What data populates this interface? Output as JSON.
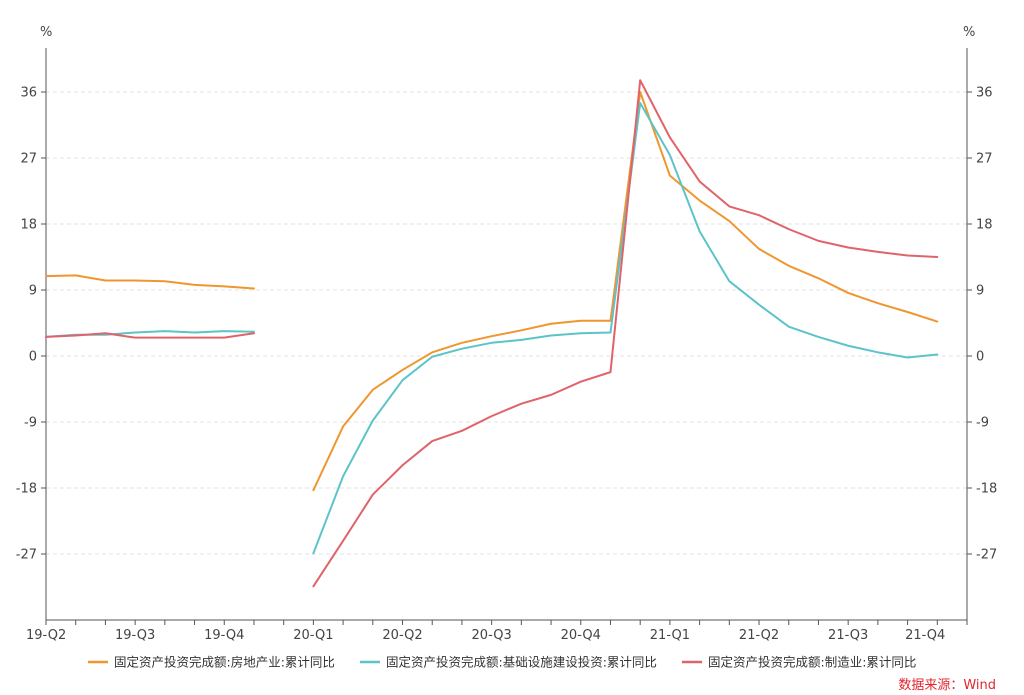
{
  "chart_data": {
    "type": "line",
    "title": "",
    "y_unit_left": "%",
    "y_unit_right": "%",
    "yticks": [
      -27,
      -18,
      -9,
      0,
      9,
      18,
      27,
      36
    ],
    "ylim": [
      -36,
      42
    ],
    "xlabels": [
      "19-Q2",
      "19-Q3",
      "19-Q4",
      "20-Q1",
      "20-Q2",
      "20-Q3",
      "20-Q4",
      "21-Q1",
      "21-Q2",
      "21-Q3",
      "21-Q4"
    ],
    "grid": true,
    "legend_position": "bottom",
    "x": [
      0,
      1,
      2,
      3,
      4,
      5,
      6,
      7,
      8,
      9,
      10,
      11,
      12,
      13,
      14,
      15,
      16,
      17,
      18,
      19,
      20,
      21,
      22,
      23,
      24,
      25,
      26,
      27,
      28,
      29,
      30,
      31
    ],
    "series": [
      {
        "name": "固定资产投资完成额:房地产业:累计同比",
        "color": "#f0962e",
        "values": [
          10.9,
          11.0,
          10.3,
          10.3,
          10.2,
          9.7,
          9.5,
          9.2,
          null,
          -18.3,
          -9.6,
          -4.6,
          -1.9,
          0.5,
          1.8,
          2.7,
          3.5,
          4.4,
          4.8,
          4.8,
          36.0,
          24.6,
          21.2,
          18.4,
          14.6,
          12.3,
          10.6,
          8.6,
          7.2,
          6.0,
          4.7,
          null
        ]
      },
      {
        "name": "固定资产投资完成额:基础设施建设投资:累计同比",
        "color": "#5cc4c8",
        "values": [
          2.6,
          2.9,
          2.9,
          3.2,
          3.4,
          3.2,
          3.4,
          3.3,
          null,
          -26.9,
          -16.4,
          -8.8,
          -3.3,
          -0.1,
          1.0,
          1.8,
          2.2,
          2.8,
          3.1,
          3.2,
          34.5,
          27.4,
          17.0,
          10.2,
          7.0,
          4.0,
          2.6,
          1.4,
          0.5,
          -0.2,
          0.2,
          null
        ]
      },
      {
        "name": "固定资产投资完成额:制造业:累计同比",
        "color": "#e0636a",
        "values": [
          2.6,
          2.8,
          3.1,
          2.5,
          2.5,
          2.5,
          2.5,
          3.1,
          null,
          -31.4,
          -25.2,
          -18.9,
          -14.9,
          -11.6,
          -10.2,
          -8.2,
          -6.5,
          -5.3,
          -3.5,
          -2.2,
          37.6,
          29.8,
          23.8,
          20.4,
          19.2,
          17.3,
          15.7,
          14.8,
          14.2,
          13.7,
          13.5,
          null
        ]
      }
    ]
  },
  "source_label": "数据来源：Wind"
}
